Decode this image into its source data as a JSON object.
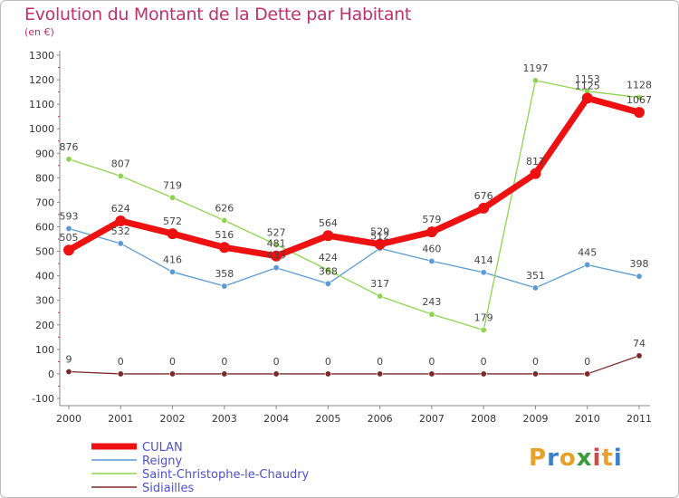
{
  "title": "Evolution du Montant de la Dette par Habitant",
  "subtitle": "(en €)",
  "logo": {
    "text": "Proxiti",
    "colors": [
      "#e8a02a",
      "#3b7fd0",
      "#e8a02a",
      "#3a9a3a",
      "#d04a4a",
      "#e8a02a",
      "#3b7fd0"
    ]
  },
  "chart_data": {
    "type": "line",
    "categories": [
      "2000",
      "2001",
      "2002",
      "2003",
      "2004",
      "2005",
      "2006",
      "2007",
      "2008",
      "2009",
      "2010",
      "2011"
    ],
    "ylim": [
      -100,
      1300
    ],
    "yticks": [
      -100,
      0,
      100,
      200,
      300,
      400,
      500,
      600,
      700,
      800,
      900,
      1000,
      1100,
      1200,
      1300
    ],
    "grid": false,
    "legend_position": "bottom-left",
    "series": [
      {
        "name": "CULAN",
        "color": "#ee1111",
        "values": [
          505,
          624,
          572,
          516,
          481,
          564,
          529,
          579,
          676,
          817,
          1125,
          1067
        ]
      },
      {
        "name": "Reigny",
        "color": "#5b9bd5",
        "values": [
          593,
          532,
          416,
          358,
          433,
          368,
          512,
          460,
          414,
          351,
          445,
          398
        ]
      },
      {
        "name": "Saint-Christophe-le-Chaudry",
        "color": "#8fd44f",
        "values": [
          876,
          807,
          719,
          626,
          527,
          424,
          317,
          243,
          179,
          1197,
          1153,
          1128
        ]
      },
      {
        "name": "Sidiailles",
        "color": "#7a2a2a",
        "values": [
          9,
          0,
          0,
          0,
          0,
          0,
          0,
          0,
          0,
          0,
          0,
          74
        ]
      }
    ]
  }
}
